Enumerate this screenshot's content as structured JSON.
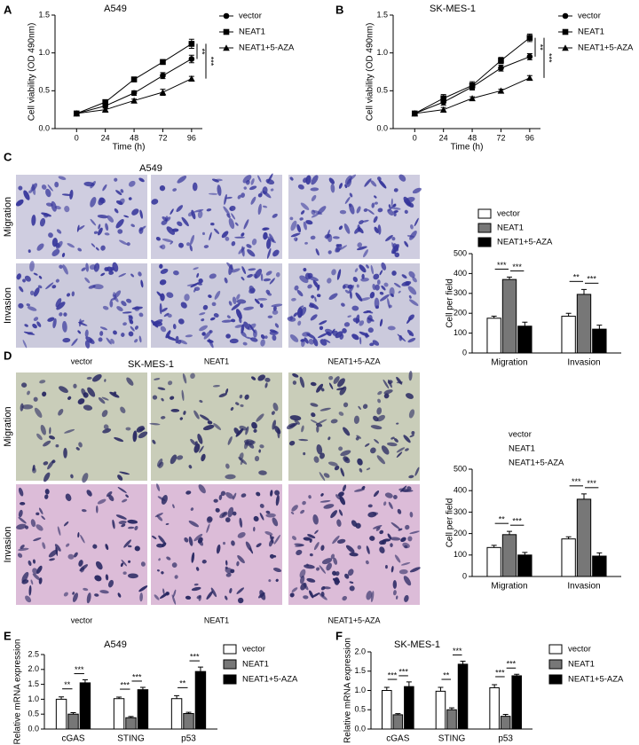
{
  "image_panels": [
    {
      "panel": "C",
      "title": "A549",
      "rows": [
        "Migration",
        "Invasion"
      ],
      "columns": [
        "vector",
        "NEAT1",
        "NEAT1+5-AZA"
      ]
    },
    {
      "panel": "D",
      "title": "SK-MES-1",
      "rows": [
        "Migration",
        "Invasion"
      ],
      "columns": [
        "vector",
        "NEAT1",
        "NEAT1+5-AZA"
      ]
    }
  ],
  "chart_data": [
    {
      "type": "line",
      "panel": "A",
      "title": "A549",
      "x_label": "Time (h)",
      "y_label": "Cell viability (OD 490nm)",
      "x": [
        0,
        24,
        48,
        72,
        96
      ],
      "xlim": [
        -18,
        105
      ],
      "xticks": [
        0,
        24,
        48,
        72,
        96
      ],
      "ylim": [
        0,
        1.5
      ],
      "yticks": [
        {
          "value": 0,
          "label": "0.0"
        },
        0.5,
        {
          "value": 1,
          "label": "1.0"
        },
        1.5
      ],
      "grid": false,
      "series": [
        {
          "name": "vector",
          "color": "#000000",
          "marker": "circle",
          "values": [
            0.2,
            0.3,
            0.47,
            0.7,
            0.92
          ],
          "errors": [
            0.02,
            0.02,
            0.03,
            0.04,
            0.05
          ]
        },
        {
          "name": "NEAT1",
          "color": "#000000",
          "marker": "square",
          "values": [
            0.2,
            0.35,
            0.65,
            0.88,
            1.12
          ],
          "errors": [
            0.02,
            0.03,
            0.03,
            0.03,
            0.06
          ]
        },
        {
          "name": "NEAT1+5-AZA",
          "color": "#000000",
          "marker": "triangle",
          "values": [
            0.2,
            0.25,
            0.37,
            0.48,
            0.66
          ],
          "errors": [
            0.02,
            0.02,
            0.02,
            0.04,
            0.03
          ]
        }
      ],
      "annotations": [
        {
          "text": "**",
          "series": [
            1,
            0
          ]
        },
        {
          "text": "***",
          "series": [
            1,
            2
          ]
        }
      ]
    },
    {
      "type": "line",
      "panel": "B",
      "title": "SK-MES-1",
      "x_label": "Time (h)",
      "y_label": "Cell viability (OD 490nm)",
      "x": [
        0,
        24,
        48,
        72,
        96
      ],
      "xlim": [
        -18,
        105
      ],
      "xticks": [
        0,
        24,
        48,
        72,
        96
      ],
      "ylim": [
        0,
        1.5
      ],
      "yticks": [
        {
          "value": 0,
          "label": "0.0"
        },
        0.5,
        {
          "value": 1,
          "label": "1.0"
        },
        1.5
      ],
      "grid": false,
      "series": [
        {
          "name": "vector",
          "color": "#000000",
          "marker": "circle",
          "values": [
            0.2,
            0.35,
            0.55,
            0.8,
            0.95
          ],
          "errors": [
            0.02,
            0.04,
            0.04,
            0.04,
            0.04
          ]
        },
        {
          "name": "NEAT1",
          "color": "#000000",
          "marker": "square",
          "values": [
            0.2,
            0.4,
            0.57,
            0.9,
            1.2
          ],
          "errors": [
            0.02,
            0.05,
            0.05,
            0.04,
            0.05
          ]
        },
        {
          "name": "NEAT1+5-AZA",
          "color": "#000000",
          "marker": "triangle",
          "values": [
            0.2,
            0.25,
            0.4,
            0.5,
            0.67
          ],
          "errors": [
            0.02,
            0.03,
            0.02,
            0.02,
            0.03
          ]
        }
      ],
      "annotations": [
        {
          "text": "**",
          "series": [
            1,
            0
          ]
        },
        {
          "text": "***",
          "series": [
            1,
            2
          ]
        }
      ]
    },
    {
      "type": "bar",
      "y_label": "Cell per field",
      "categories": [
        "Migration",
        "Invasion"
      ],
      "ylim": [
        0,
        500
      ],
      "yticks": [
        0,
        100,
        200,
        300,
        400,
        500
      ],
      "grid": false,
      "legend_swatches": true,
      "series": [
        {
          "name": "vector",
          "color": "#ffffff",
          "values": [
            175,
            185
          ],
          "errors": [
            10,
            15
          ]
        },
        {
          "name": "NEAT1",
          "color": "#777777",
          "values": [
            370,
            295
          ],
          "errors": [
            12,
            25
          ]
        },
        {
          "name": "NEAT1+5-AZA",
          "color": "#000000",
          "values": [
            135,
            120
          ],
          "errors": [
            20,
            20
          ]
        }
      ],
      "annotations": [
        {
          "text": "***",
          "category": 0,
          "series": [
            0,
            1
          ]
        },
        {
          "text": "***",
          "category": 0,
          "series": [
            1,
            2
          ]
        },
        {
          "text": "**",
          "category": 1,
          "series": [
            0,
            1
          ]
        },
        {
          "text": "***",
          "category": 1,
          "series": [
            1,
            2
          ]
        }
      ]
    },
    {
      "type": "bar",
      "y_label": "Cell per field",
      "categories": [
        "Migration",
        "Invasion"
      ],
      "ylim": [
        0,
        500
      ],
      "yticks": [
        0,
        100,
        200,
        300,
        400,
        500
      ],
      "grid": false,
      "legend_swatches": false,
      "series": [
        {
          "name": "vector",
          "color": "#ffffff",
          "values": [
            135,
            175
          ],
          "errors": [
            10,
            10
          ]
        },
        {
          "name": "NEAT1",
          "color": "#777777",
          "values": [
            195,
            360
          ],
          "errors": [
            15,
            25
          ]
        },
        {
          "name": "NEAT1+5-AZA",
          "color": "#000000",
          "values": [
            100,
            95
          ],
          "errors": [
            12,
            15
          ]
        }
      ],
      "annotations": [
        {
          "text": "**",
          "category": 0,
          "series": [
            0,
            1
          ]
        },
        {
          "text": "***",
          "category": 0,
          "series": [
            1,
            2
          ]
        },
        {
          "text": "***",
          "category": 1,
          "series": [
            0,
            1
          ]
        },
        {
          "text": "***",
          "category": 1,
          "series": [
            1,
            2
          ]
        }
      ]
    },
    {
      "type": "bar",
      "panel": "E",
      "title": "A549",
      "y_label": "Relative mRNA expression",
      "categories": [
        "cGAS",
        "STING",
        "p53"
      ],
      "ylim": [
        0,
        2.5
      ],
      "yticks": [
        {
          "value": 0,
          "label": "0.0"
        },
        0.5,
        {
          "value": 1,
          "label": "1.0"
        },
        1.5,
        {
          "value": 2,
          "label": "2.0"
        },
        2.5
      ],
      "grid": false,
      "legend_swatches": true,
      "series": [
        {
          "name": "vector",
          "color": "#ffffff",
          "values": [
            1.0,
            1.02,
            1.02
          ],
          "errors": [
            0.08,
            0.05,
            0.1
          ]
        },
        {
          "name": "NEAT1",
          "color": "#777777",
          "values": [
            0.5,
            0.38,
            0.52
          ],
          "errors": [
            0.05,
            0.04,
            0.04
          ]
        },
        {
          "name": "NEAT1+5-AZA",
          "color": "#000000",
          "values": [
            1.55,
            1.32,
            1.93
          ],
          "errors": [
            0.1,
            0.08,
            0.15
          ]
        }
      ],
      "annotations": [
        {
          "text": "**",
          "category": 0,
          "series": [
            0,
            1
          ]
        },
        {
          "text": "***",
          "category": 0,
          "series": [
            1,
            2
          ]
        },
        {
          "text": "***",
          "category": 1,
          "series": [
            0,
            1
          ]
        },
        {
          "text": "***",
          "category": 1,
          "series": [
            1,
            2
          ]
        },
        {
          "text": "**",
          "category": 2,
          "series": [
            0,
            1
          ]
        },
        {
          "text": "***",
          "category": 2,
          "series": [
            1,
            2
          ]
        }
      ]
    },
    {
      "type": "bar",
      "panel": "F",
      "title": "SK-MES-1",
      "y_label": "Relative mRNA expression",
      "categories": [
        "cGAS",
        "STING",
        "p53"
      ],
      "ylim": [
        0,
        2
      ],
      "yticks": [
        {
          "value": 0,
          "label": "0.0"
        },
        0.5,
        {
          "value": 1,
          "label": "1.0"
        },
        1.5,
        {
          "value": 2,
          "label": "2.0"
        }
      ],
      "grid": false,
      "legend_swatches": true,
      "series": [
        {
          "name": "vector",
          "color": "#ffffff",
          "values": [
            1.0,
            0.98,
            1.07
          ],
          "errors": [
            0.08,
            0.1,
            0.08
          ]
        },
        {
          "name": "NEAT1",
          "color": "#777777",
          "values": [
            0.37,
            0.5,
            0.33
          ],
          "errors": [
            0.03,
            0.05,
            0.05
          ]
        },
        {
          "name": "NEAT1+5-AZA",
          "color": "#000000",
          "values": [
            1.1,
            1.68,
            1.38
          ],
          "errors": [
            0.12,
            0.08,
            0.04
          ]
        }
      ],
      "annotations": [
        {
          "text": "***",
          "category": 0,
          "series": [
            0,
            1
          ]
        },
        {
          "text": "***",
          "category": 0,
          "series": [
            1,
            2
          ]
        },
        {
          "text": "**",
          "category": 1,
          "series": [
            0,
            1
          ]
        },
        {
          "text": "***",
          "category": 1,
          "series": [
            1,
            2
          ]
        },
        {
          "text": "***",
          "category": 2,
          "series": [
            0,
            1
          ]
        },
        {
          "text": "***",
          "category": 2,
          "series": [
            1,
            2
          ]
        }
      ]
    }
  ]
}
